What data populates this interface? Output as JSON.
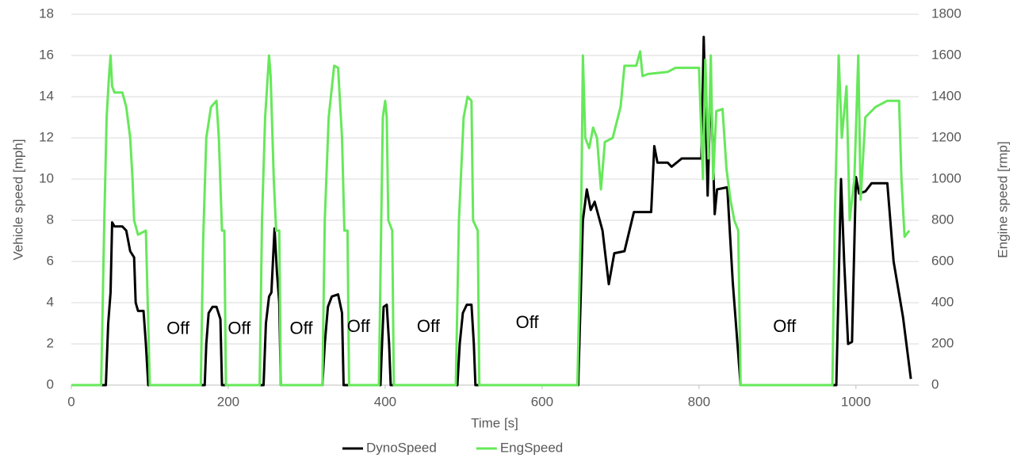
{
  "chart_data": {
    "type": "line",
    "x_label": "Time [s]",
    "y_label": "Vehicle speed [mph]",
    "y2_label": "Engine speed [rmp]",
    "xlim": [
      0,
      1080
    ],
    "xticks": [
      0,
      200,
      400,
      600,
      800,
      1000
    ],
    "ylim": [
      0,
      18
    ],
    "yticks": [
      0,
      2,
      4,
      6,
      8,
      10,
      12,
      14,
      16,
      18
    ],
    "y2lim": [
      0,
      1800
    ],
    "y2ticks": [
      0,
      200,
      400,
      600,
      800,
      1000,
      1200,
      1400,
      1600,
      1800
    ],
    "grid": true,
    "legend": "bottom",
    "series": [
      {
        "name": "DynoSpeed",
        "color": "#000000",
        "axis": "y",
        "x": [
          0,
          40,
          44,
          47,
          50,
          52,
          55,
          65,
          70,
          75,
          80,
          82,
          85,
          92,
          95,
          98,
          170,
          172,
          175,
          180,
          185,
          190,
          192,
          245,
          248,
          252,
          255,
          259,
          262,
          265,
          267,
          320,
          323,
          327,
          332,
          340,
          345,
          347,
          394,
          396,
          398,
          402,
          405,
          407,
          492,
          495,
          499,
          504,
          510,
          513,
          515,
          646,
          649,
          652,
          657,
          662,
          667,
          677,
          685,
          692,
          705,
          717,
          739,
          743,
          747,
          760,
          765,
          778,
          803,
          806,
          811,
          815,
          820,
          823,
          836,
          843,
          853,
          975,
          978,
          981,
          985,
          990,
          995,
          1000,
          1004,
          1012,
          1020,
          1040,
          1048,
          1060,
          1070
        ],
        "values": [
          0,
          0,
          0,
          3,
          4.5,
          7.9,
          7.7,
          7.7,
          7.5,
          6.5,
          6.2,
          4,
          3.6,
          3.6,
          2,
          0,
          0,
          2,
          3.5,
          3.8,
          3.8,
          3.2,
          0,
          0,
          3,
          4.3,
          4.5,
          7.6,
          5.5,
          4,
          0,
          0,
          2,
          3.8,
          4.3,
          4.4,
          3.5,
          0,
          0,
          2,
          3.8,
          3.9,
          2,
          0,
          0,
          2,
          3.5,
          3.9,
          3.9,
          2,
          0,
          0,
          4,
          8,
          9.5,
          8.5,
          8.9,
          7.5,
          4.9,
          6.4,
          6.5,
          8.4,
          8.4,
          11.6,
          10.8,
          10.8,
          10.6,
          11,
          11,
          16.9,
          9.2,
          14.7,
          8.3,
          9.5,
          9.6,
          5,
          0,
          0,
          5,
          10,
          6,
          2,
          2.1,
          10.1,
          9.3,
          9.4,
          9.8,
          9.8,
          6,
          3.3,
          0.3
        ]
      },
      {
        "name": "EngSpeed",
        "color": "#66e85a",
        "axis": "y2",
        "x": [
          0,
          38,
          42,
          45,
          48,
          50,
          52,
          55,
          65,
          70,
          75,
          78,
          80,
          85,
          95,
          100,
          165,
          168,
          172,
          178,
          185,
          188,
          192,
          195,
          197,
          240,
          243,
          247,
          252,
          254,
          258,
          261,
          265,
          267,
          320,
          323,
          328,
          335,
          340,
          345,
          348,
          352,
          354,
          392,
          395,
          397,
          400,
          402,
          404,
          409,
          411,
          490,
          494,
          500,
          505,
          510,
          512,
          518,
          520,
          645,
          650,
          652,
          655,
          660,
          665,
          670,
          675,
          680,
          690,
          700,
          705,
          720,
          725,
          728,
          735,
          760,
          770,
          800,
          805,
          808,
          812,
          815,
          818,
          822,
          830,
          835,
          840,
          845,
          850,
          853,
          970,
          973,
          978,
          982,
          988,
          992,
          998,
          1003,
          1006,
          1012,
          1025,
          1040,
          1055,
          1058,
          1062,
          1068
        ],
        "values": [
          0,
          0,
          800,
          1300,
          1500,
          1600,
          1450,
          1420,
          1420,
          1350,
          1200,
          1000,
          800,
          730,
          750,
          0,
          0,
          700,
          1200,
          1350,
          1380,
          1200,
          750,
          750,
          0,
          0,
          800,
          1300,
          1600,
          1500,
          1000,
          750,
          750,
          0,
          0,
          800,
          1300,
          1550,
          1540,
          1200,
          750,
          750,
          0,
          0,
          800,
          1300,
          1380,
          1300,
          800,
          750,
          0,
          0,
          800,
          1300,
          1400,
          1380,
          800,
          750,
          0,
          0,
          900,
          1600,
          1200,
          1150,
          1250,
          1200,
          950,
          1180,
          1200,
          1350,
          1550,
          1550,
          1620,
          1500,
          1510,
          1520,
          1540,
          1540,
          1000,
          1580,
          1100,
          1600,
          1000,
          1330,
          1340,
          1050,
          900,
          800,
          750,
          0,
          0,
          800,
          1600,
          1200,
          1450,
          800,
          1000,
          1600,
          900,
          1300,
          1350,
          1380,
          1380,
          1000,
          720,
          750
        ]
      }
    ],
    "annotations": [
      {
        "text": "Off",
        "x": 136,
        "y": 2.7
      },
      {
        "text": "Off",
        "x": 214,
        "y": 2.7
      },
      {
        "text": "Off",
        "x": 293,
        "y": 2.7
      },
      {
        "text": "Off",
        "x": 366,
        "y": 2.8
      },
      {
        "text": "Off",
        "x": 455,
        "y": 2.8
      },
      {
        "text": "Off",
        "x": 581,
        "y": 3.0
      },
      {
        "text": "Off",
        "x": 909,
        "y": 2.8
      }
    ]
  }
}
